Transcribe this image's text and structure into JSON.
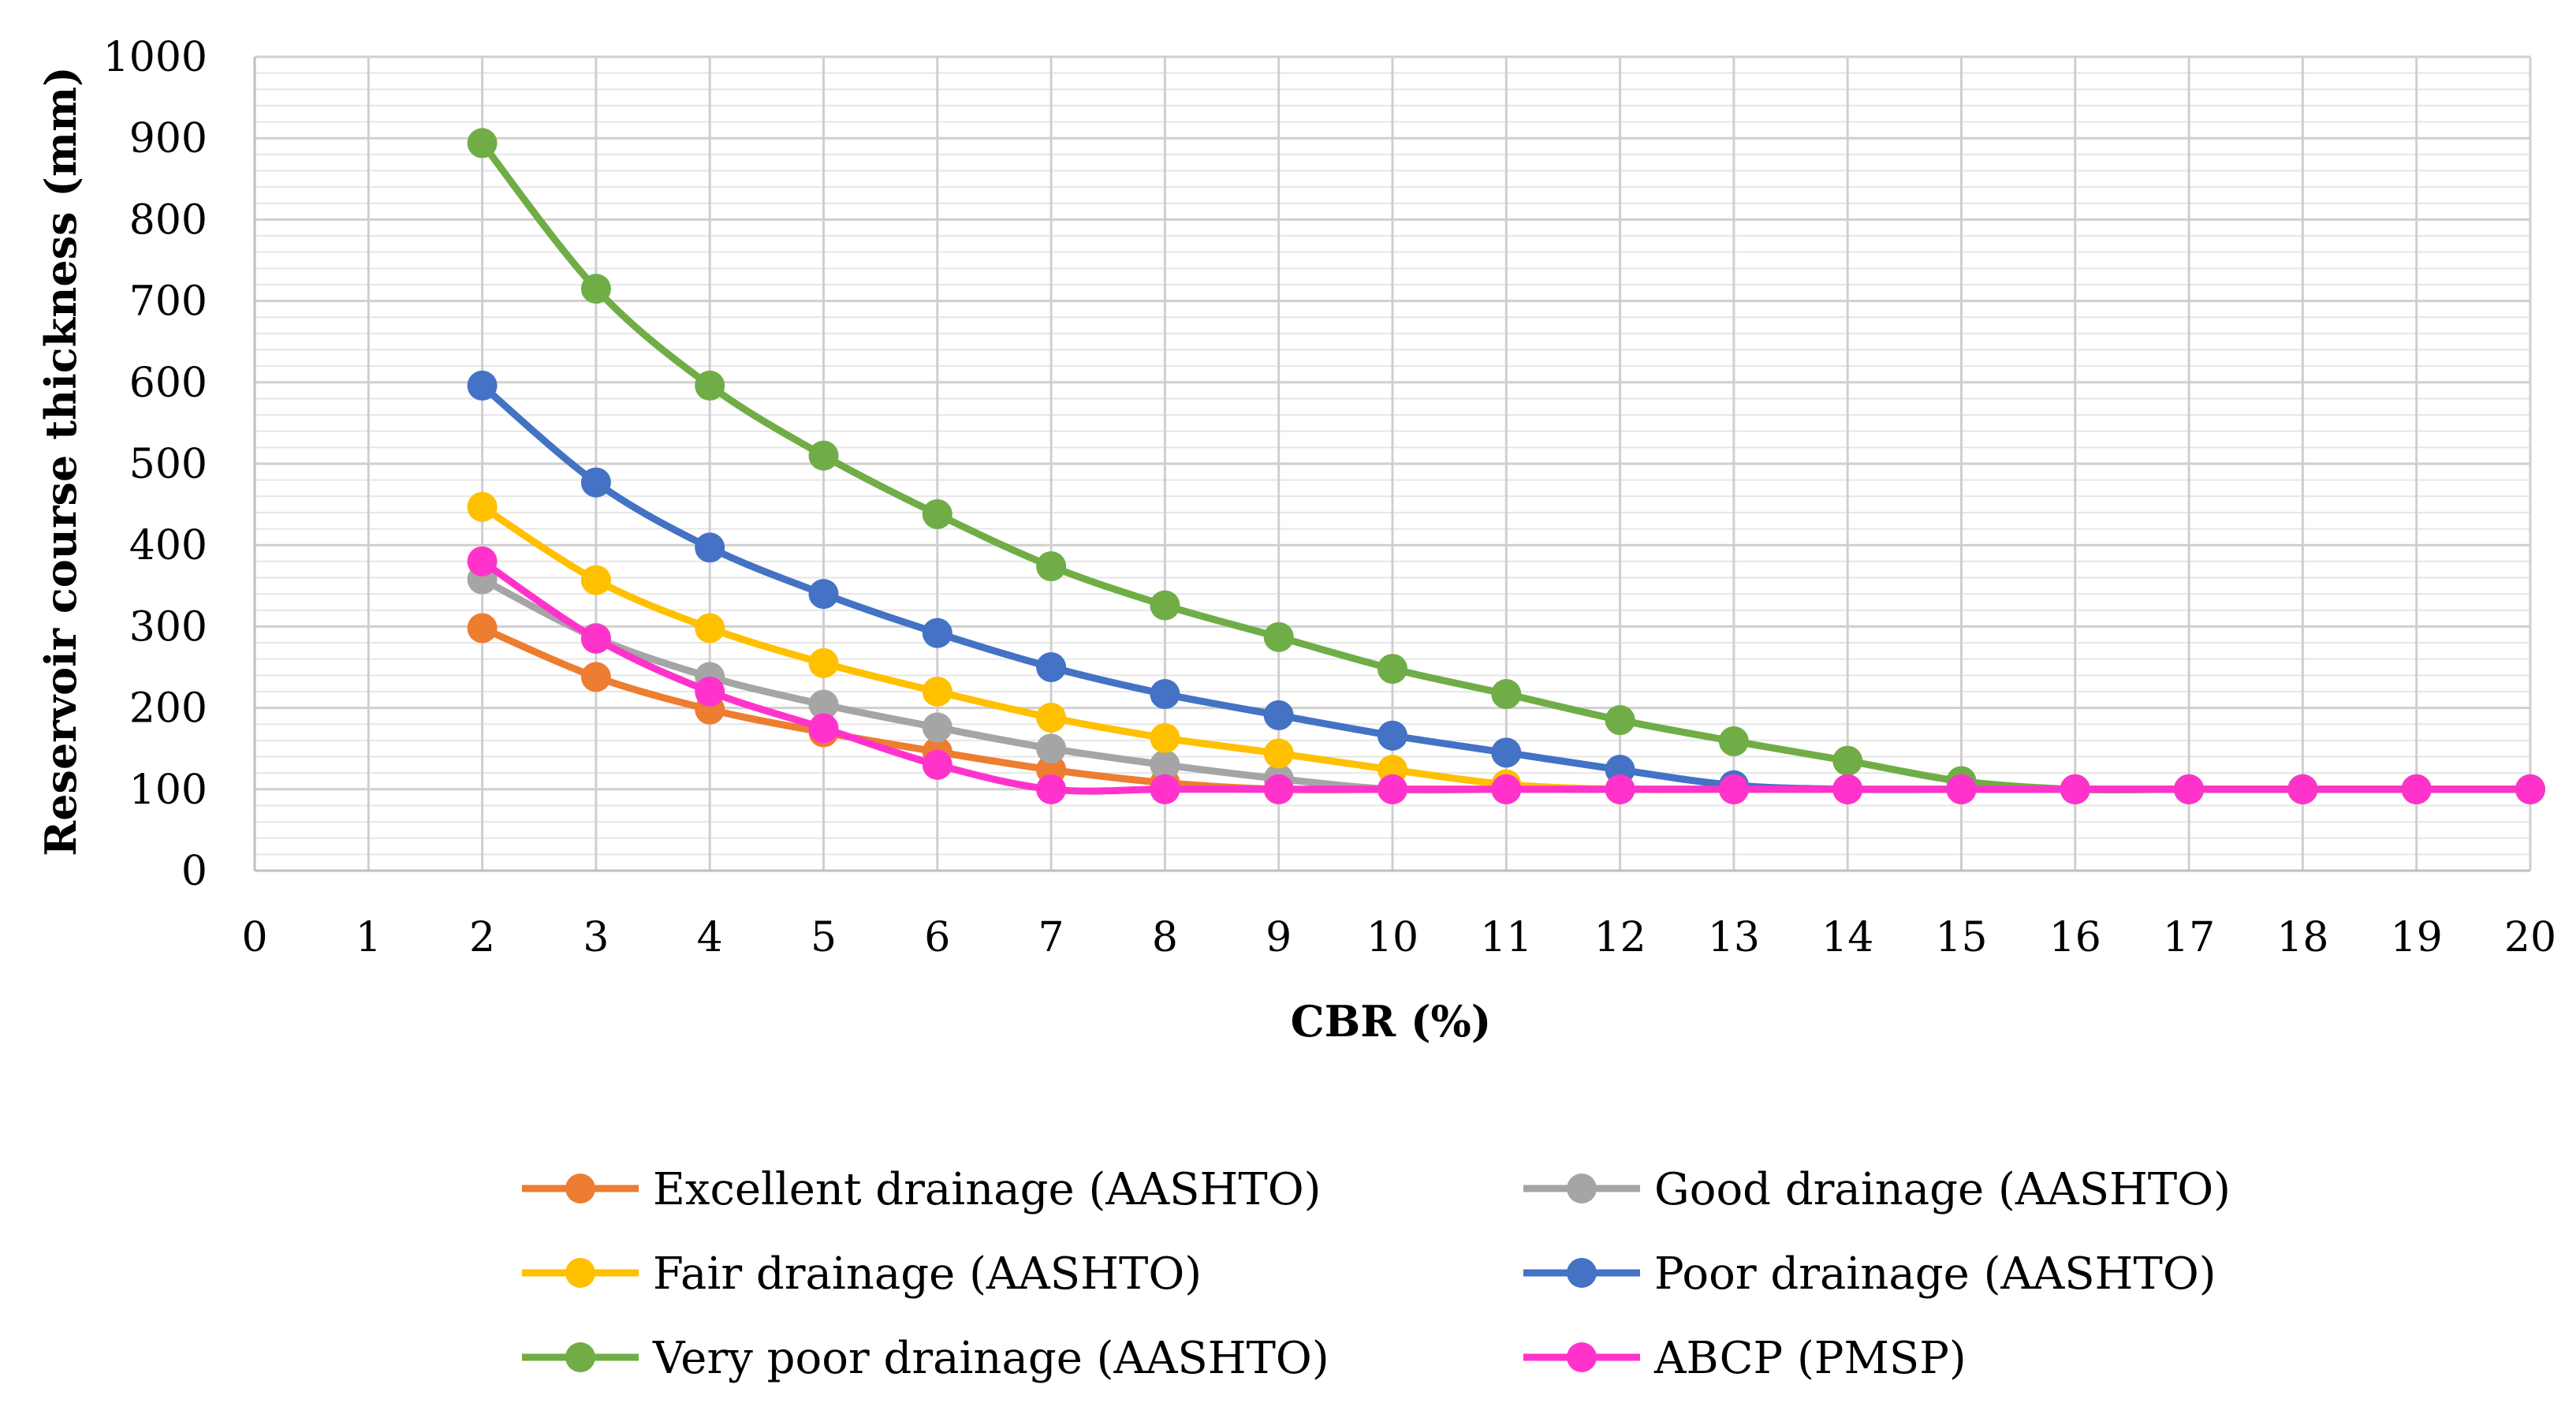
{
  "chart_data": {
    "type": "line",
    "title": "",
    "xlabel": "CBR (%)",
    "ylabel": "Reservoir course thickness (mm)",
    "xlim": [
      0,
      20
    ],
    "ylim": [
      0,
      1000
    ],
    "x_ticks": [
      "0",
      "1",
      "2",
      "3",
      "4",
      "5",
      "6",
      "7",
      "8",
      "9",
      "10",
      "11",
      "12",
      "13",
      "14",
      "15",
      "16",
      "17",
      "18",
      "19",
      "20"
    ],
    "y_ticks": [
      "0",
      "100",
      "200",
      "300",
      "400",
      "500",
      "600",
      "700",
      "800",
      "900",
      "1000"
    ],
    "grid": true,
    "legend_position": "bottom",
    "x": [
      2,
      3,
      4,
      5,
      6,
      7,
      8,
      9,
      10,
      11,
      12,
      13,
      14,
      15,
      16,
      17,
      18,
      19,
      20
    ],
    "series": [
      {
        "name": "Excellent drainage (AASHTO)",
        "color": "#ED7D31",
        "values": [
          298,
          238,
          198,
          170,
          146,
          124,
          108,
          100,
          100,
          100,
          100,
          100,
          100,
          100,
          100,
          100,
          100,
          100,
          100
        ]
      },
      {
        "name": "Good drainage (AASHTO)",
        "color": "#A5A5A5",
        "values": [
          358,
          286,
          238,
          204,
          176,
          150,
          130,
          113,
          100,
          100,
          100,
          100,
          100,
          100,
          100,
          100,
          100,
          100,
          100
        ]
      },
      {
        "name": "Fair drainage (AASHTO)",
        "color": "#FFC000",
        "values": [
          447,
          357,
          298,
          255,
          220,
          188,
          163,
          144,
          124,
          106,
          100,
          100,
          100,
          100,
          100,
          100,
          100,
          100,
          100
        ]
      },
      {
        "name": "Poor drainage (AASHTO)",
        "color": "#4472C4",
        "values": [
          596,
          477,
          397,
          340,
          292,
          250,
          217,
          191,
          166,
          145,
          124,
          105,
          100,
          100,
          100,
          100,
          100,
          100,
          100
        ]
      },
      {
        "name": "Very poor drainage (AASHTO)",
        "color": "#70AD47",
        "values": [
          894,
          715,
          596,
          510,
          438,
          374,
          326,
          287,
          248,
          217,
          185,
          159,
          135,
          110,
          100,
          100,
          100,
          100,
          100
        ]
      },
      {
        "name": "ABCP (PMSP)",
        "color": "#FF33CC",
        "values": [
          380,
          285,
          220,
          175,
          130,
          100,
          100,
          100,
          100,
          100,
          100,
          100,
          100,
          100,
          100,
          100,
          100,
          100,
          100
        ]
      }
    ]
  }
}
